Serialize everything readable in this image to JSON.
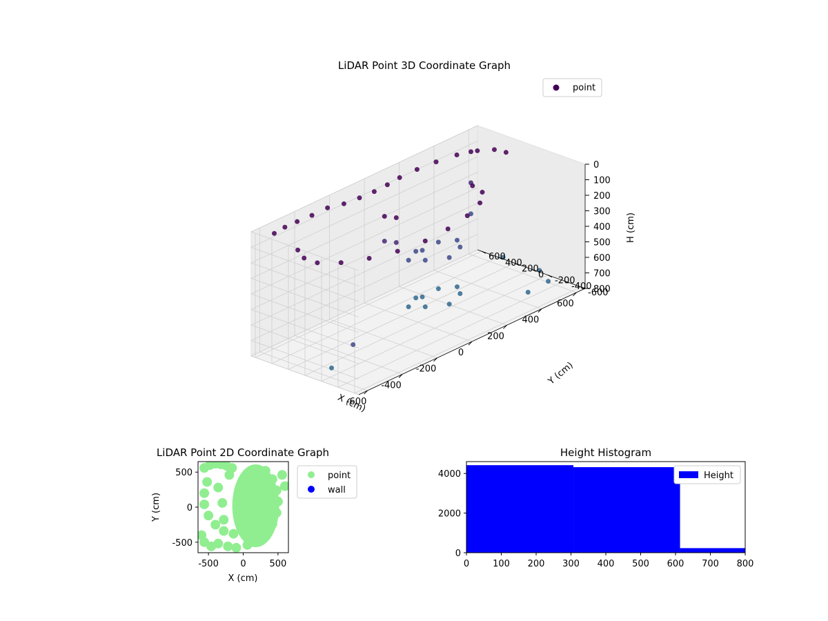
{
  "chart_data": [
    {
      "type": "scatter",
      "projection": "3d",
      "title": "LiDAR Point 3D Coordinate Graph",
      "xlabel": "X (cm)",
      "ylabel": "Y (cm)",
      "zlabel": "H (cm)",
      "xlim": [
        -650,
        650
      ],
      "ylim": [
        -650,
        650
      ],
      "zlim": [
        800,
        0
      ],
      "xticks": [
        "-600",
        "-400",
        "-200",
        "0",
        "200",
        "400",
        "600"
      ],
      "yticks": [
        "-600",
        "-400",
        "-200",
        "0",
        "200",
        "400",
        "600"
      ],
      "zticks": [
        "0",
        "100",
        "200",
        "300",
        "400",
        "500",
        "600",
        "700",
        "800"
      ],
      "grid": true,
      "legend": {
        "position": "top-right",
        "entries": [
          "point"
        ]
      },
      "colormap": "viridis",
      "series": [
        {
          "name": "point",
          "color": "#440154",
          "points": [
            {
              "x": -560,
              "y": 560,
              "h": 40
            },
            {
              "x": -480,
              "y": 600,
              "h": 50
            },
            {
              "x": -400,
              "y": 620,
              "h": 60
            },
            {
              "x": -320,
              "y": 610,
              "h": 60
            },
            {
              "x": -240,
              "y": 590,
              "h": 50
            },
            {
              "x": -160,
              "y": 560,
              "h": 60
            },
            {
              "x": -80,
              "y": 540,
              "h": 60
            },
            {
              "x": 0,
              "y": 530,
              "h": 60
            },
            {
              "x": 80,
              "y": 540,
              "h": 60
            },
            {
              "x": 160,
              "y": 560,
              "h": 60
            },
            {
              "x": 260,
              "y": 560,
              "h": 60
            },
            {
              "x": 360,
              "y": 540,
              "h": 60
            },
            {
              "x": 460,
              "y": 500,
              "h": 60
            },
            {
              "x": 540,
              "y": 420,
              "h": 60
            },
            {
              "x": 590,
              "y": 320,
              "h": 60
            },
            {
              "x": 600,
              "y": 200,
              "h": 60
            },
            {
              "x": -520,
              "y": 360,
              "h": 130
            },
            {
              "x": -560,
              "y": 200,
              "h": 130
            },
            {
              "x": -560,
              "y": 40,
              "h": 130
            },
            {
              "x": -500,
              "y": -120,
              "h": 130
            },
            {
              "x": -400,
              "y": -250,
              "h": 130
            },
            {
              "x": -280,
              "y": -340,
              "h": 130
            },
            {
              "x": -140,
              "y": -380,
              "h": 130
            },
            {
              "x": 0,
              "y": -360,
              "h": 130
            },
            {
              "x": 140,
              "y": -300,
              "h": 130
            },
            {
              "x": 260,
              "y": -200,
              "h": 130
            },
            {
              "x": 340,
              "y": -60,
              "h": 130
            },
            {
              "x": 360,
              "y": 100,
              "h": 130
            },
            {
              "x": 100,
              "y": 160,
              "h": 420
            },
            {
              "x": 60,
              "y": 40,
              "h": 440
            },
            {
              "x": 160,
              "y": -40,
              "h": 460
            },
            {
              "x": 260,
              "y": 40,
              "h": 460
            },
            {
              "x": 300,
              "y": 160,
              "h": 460
            },
            {
              "x": 240,
              "y": 260,
              "h": 460
            },
            {
              "x": 120,
              "y": 280,
              "h": 460
            },
            {
              "x": 40,
              "y": 200,
              "h": 460
            },
            {
              "x": 100,
              "y": 160,
              "h": 720
            },
            {
              "x": 60,
              "y": 40,
              "h": 740
            },
            {
              "x": 160,
              "y": -40,
              "h": 760
            },
            {
              "x": 260,
              "y": 40,
              "h": 760
            },
            {
              "x": 300,
              "y": 160,
              "h": 760
            },
            {
              "x": 240,
              "y": 260,
              "h": 760
            },
            {
              "x": 120,
              "y": 280,
              "h": 760
            },
            {
              "x": 40,
              "y": 200,
              "h": 760
            },
            {
              "x": -60,
              "y": 280,
              "h": 140
            },
            {
              "x": -60,
              "y": 280,
              "h": 300
            },
            {
              "x": -40,
              "y": 180,
              "h": 140
            },
            {
              "x": -40,
              "y": 180,
              "h": 300
            },
            {
              "x": 560,
              "y": 540,
              "h": 100
            },
            {
              "x": 560,
              "y": 540,
              "h": 300
            },
            {
              "x": 560,
              "y": 540,
              "h": 500
            },
            {
              "x": 500,
              "y": -520,
              "h": 700
            },
            {
              "x": -640,
              "y": -560,
              "h": 500
            },
            {
              "x": -640,
              "y": -300,
              "h": 700
            },
            {
              "x": 640,
              "y": 320,
              "h": 780
            },
            {
              "x": 640,
              "y": -120,
              "h": 780
            },
            {
              "x": 460,
              "y": -360,
              "h": 780
            }
          ]
        }
      ]
    },
    {
      "type": "scatter",
      "title": "LiDAR Point 2D Coordinate Graph",
      "xlabel": "X (cm)",
      "ylabel": "Y (cm)",
      "xlim": [
        -650,
        650
      ],
      "ylim": [
        -650,
        650
      ],
      "xticks": [
        "-500",
        "0",
        "500"
      ],
      "yticks": [
        "-500",
        "0",
        "500"
      ],
      "legend": {
        "position": "right, outside",
        "entries": [
          "point",
          "wall"
        ]
      },
      "series": [
        {
          "name": "point",
          "color": "#90ee90",
          "points": [
            {
              "x": -560,
              "y": 560
            },
            {
              "x": -480,
              "y": 600
            },
            {
              "x": -400,
              "y": 620
            },
            {
              "x": -320,
              "y": 610
            },
            {
              "x": -240,
              "y": 590
            },
            {
              "x": -160,
              "y": 560
            },
            {
              "x": -520,
              "y": 360
            },
            {
              "x": -560,
              "y": 200
            },
            {
              "x": -560,
              "y": 40
            },
            {
              "x": -500,
              "y": -120
            },
            {
              "x": -400,
              "y": -250
            },
            {
              "x": -280,
              "y": -340
            },
            {
              "x": -140,
              "y": -380
            },
            {
              "x": 0,
              "y": -360
            },
            {
              "x": 140,
              "y": -300
            },
            {
              "x": 260,
              "y": -200
            },
            {
              "x": 340,
              "y": -60
            },
            {
              "x": 360,
              "y": 100
            },
            {
              "x": -600,
              "y": -400
            },
            {
              "x": -560,
              "y": -500
            },
            {
              "x": -460,
              "y": -560
            },
            {
              "x": -360,
              "y": -520
            },
            {
              "x": -220,
              "y": -560
            },
            {
              "x": -100,
              "y": -580
            },
            {
              "x": 60,
              "y": -540
            },
            {
              "x": 200,
              "y": -480
            },
            {
              "x": 320,
              "y": -380
            },
            {
              "x": 420,
              "y": -240
            },
            {
              "x": 480,
              "y": -80
            },
            {
              "x": 500,
              "y": 80
            },
            {
              "x": 480,
              "y": 240
            },
            {
              "x": 420,
              "y": 400
            },
            {
              "x": 320,
              "y": 520
            },
            {
              "x": 560,
              "y": 460
            },
            {
              "x": 600,
              "y": 300
            },
            {
              "x": -300,
              "y": 60
            },
            {
              "x": -280,
              "y": -180
            },
            {
              "x": -360,
              "y": 280
            },
            {
              "x": -200,
              "y": 460
            }
          ]
        },
        {
          "name": "wall",
          "color": "#0000ff",
          "points": []
        }
      ]
    },
    {
      "type": "bar",
      "title": "Height Histogram",
      "xlabel": "",
      "ylabel": "",
      "xlim": [
        0,
        800
      ],
      "ylim": [
        0,
        4600
      ],
      "xticks": [
        "0",
        "100",
        "200",
        "300",
        "400",
        "500",
        "600",
        "700",
        "800"
      ],
      "yticks": [
        "0",
        "2000",
        "4000"
      ],
      "legend": {
        "position": "top-right",
        "entries": [
          "Height"
        ]
      },
      "series": [
        {
          "name": "Height",
          "color": "#0000ff",
          "bins": [
            {
              "x0": 0,
              "x1": 307,
              "count": 4420
            },
            {
              "x0": 307,
              "x1": 613,
              "count": 4320
            },
            {
              "x0": 613,
              "x1": 800,
              "count": 230
            }
          ]
        }
      ]
    }
  ]
}
